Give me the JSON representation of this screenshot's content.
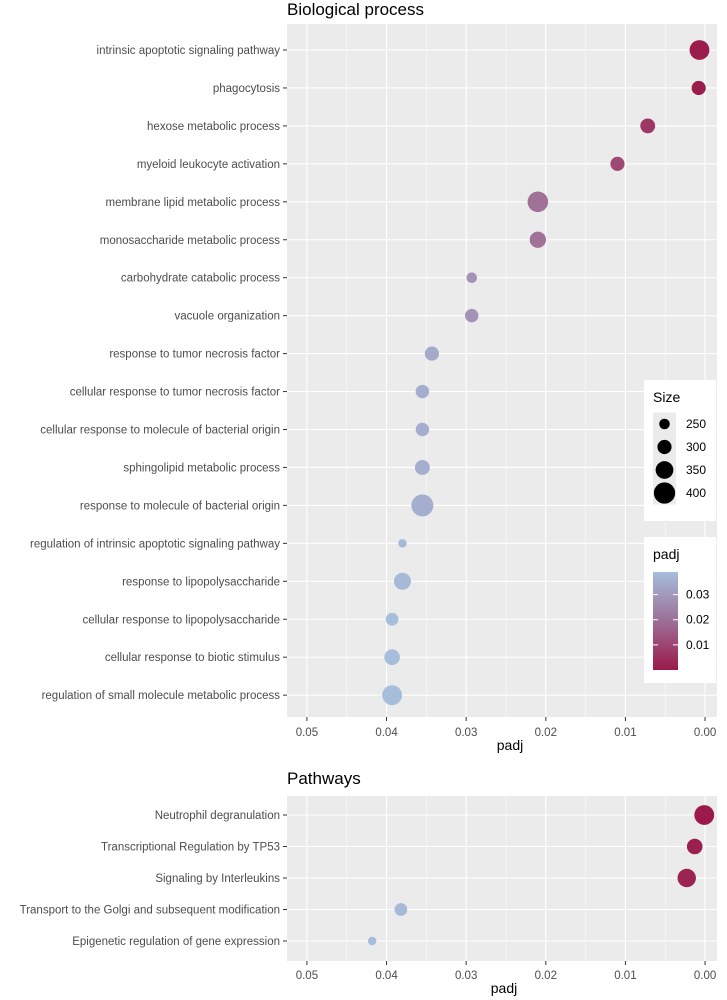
{
  "colors": {
    "low": "#9b1a4a",
    "high": "#a6bddb",
    "panel": "#ebebeb",
    "grid": "#ffffff"
  },
  "chart_data": [
    {
      "type": "scatter",
      "title": "Biological process",
      "xlabel": "padj",
      "x_reversed": true,
      "xlim": [
        0.0525,
        -0.0015
      ],
      "xticks": [
        0.05,
        0.04,
        0.03,
        0.02,
        0.01,
        0.0
      ],
      "xtick_labels": [
        "0.05",
        "0.04",
        "0.03",
        "0.02",
        "0.01",
        "0.00"
      ],
      "categories": [
        "intrinsic apoptotic signaling pathway",
        "phagocytosis",
        "hexose metabolic process",
        "myeloid leukocyte activation",
        "membrane lipid metabolic process",
        "monosaccharide metabolic process",
        "carbohydrate catabolic process",
        "vacuole organization",
        "response to tumor necrosis factor",
        "cellular response to tumor necrosis factor",
        "cellular response to molecule of bacterial origin",
        "sphingolipid metabolic process",
        "response to molecule of bacterial origin",
        "regulation of intrinsic apoptotic signaling pathway",
        "response to lipopolysaccharide",
        "cellular response to lipopolysaccharide",
        "cellular response to biotic stimulus",
        "regulation of small molecule metabolic process"
      ],
      "padj": [
        0.0007,
        0.0008,
        0.0072,
        0.011,
        0.021,
        0.021,
        0.0293,
        0.0293,
        0.0343,
        0.0355,
        0.0355,
        0.0355,
        0.0355,
        0.038,
        0.038,
        0.0393,
        0.0393,
        0.0393
      ],
      "size": [
        380,
        300,
        310,
        300,
        390,
        330,
        250,
        290,
        300,
        290,
        290,
        310,
        410,
        220,
        340,
        280,
        320,
        380
      ]
    },
    {
      "type": "scatter",
      "title": "Pathways",
      "xlabel": "padj",
      "x_reversed": true,
      "xlim": [
        0.0525,
        -0.0015
      ],
      "xticks": [
        0.05,
        0.04,
        0.03,
        0.02,
        0.01,
        0.0
      ],
      "xtick_labels": [
        "0.05",
        "0.04",
        "0.03",
        "0.02",
        "0.01",
        "0.00"
      ],
      "categories": [
        "Neutrophil degranulation",
        "Transcriptional Regulation by TP53",
        "Signaling by Interleukins",
        "Transport to the Golgi and subsequent modification",
        "Epigenetic regulation of gene expression"
      ],
      "padj": [
        0.0001,
        0.0013,
        0.0023,
        0.0382,
        0.0418
      ],
      "size": [
        380,
        320,
        360,
        280,
        220
      ]
    }
  ],
  "legend": {
    "size_title": "Size",
    "size_values": [
      250,
      300,
      350,
      400
    ],
    "size_labels": [
      "250",
      "300",
      "350",
      "400"
    ],
    "color_title": "padj",
    "color_min": 0.0,
    "color_max": 0.039,
    "color_ticks": [
      0.03,
      0.02,
      0.01
    ],
    "color_tick_labels": [
      "0.03",
      "0.02",
      "0.01"
    ]
  }
}
